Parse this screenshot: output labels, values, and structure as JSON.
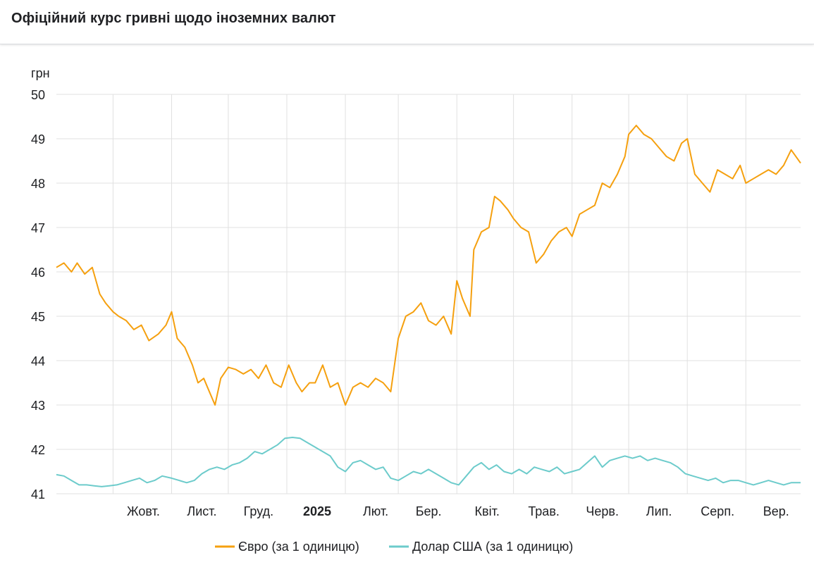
{
  "header": {
    "title": "Офіційний курс гривні щодо іноземних валют"
  },
  "chart_data": {
    "type": "line",
    "title": "Офіційний курс гривні щодо іноземних валют",
    "ylabel": "грн",
    "ylim": [
      41,
      50
    ],
    "yticks": [
      41,
      42,
      43,
      44,
      45,
      46,
      47,
      48,
      49,
      50
    ],
    "xlim": [
      "2024-09-01",
      "2025-09-30"
    ],
    "xticks": [
      {
        "date": "2024-10-01",
        "label": "Жовт.",
        "bold": false
      },
      {
        "date": "2024-11-01",
        "label": "Лист.",
        "bold": false
      },
      {
        "date": "2024-12-01",
        "label": "Груд.",
        "bold": false
      },
      {
        "date": "2025-01-01",
        "label": "2025",
        "bold": true
      },
      {
        "date": "2025-02-01",
        "label": "Лют.",
        "bold": false
      },
      {
        "date": "2025-03-01",
        "label": "Бер.",
        "bold": false
      },
      {
        "date": "2025-04-01",
        "label": "Квіт.",
        "bold": false
      },
      {
        "date": "2025-05-01",
        "label": "Трав.",
        "bold": false
      },
      {
        "date": "2025-06-01",
        "label": "Черв.",
        "bold": false
      },
      {
        "date": "2025-07-01",
        "label": "Лип.",
        "bold": false
      },
      {
        "date": "2025-08-01",
        "label": "Серп.",
        "bold": false
      },
      {
        "date": "2025-09-01",
        "label": "Вер.",
        "bold": false
      }
    ],
    "grid": true,
    "legend": "bottom",
    "series": [
      {
        "name": "Євро (за 1 одиницю)",
        "color": "#f5a00f",
        "x": [
          "2024-09-01",
          "2024-09-05",
          "2024-09-09",
          "2024-09-12",
          "2024-09-16",
          "2024-09-20",
          "2024-09-24",
          "2024-09-27",
          "2024-10-01",
          "2024-10-04",
          "2024-10-08",
          "2024-10-12",
          "2024-10-16",
          "2024-10-20",
          "2024-10-25",
          "2024-10-29",
          "2024-11-01",
          "2024-11-04",
          "2024-11-08",
          "2024-11-12",
          "2024-11-15",
          "2024-11-18",
          "2024-11-20",
          "2024-11-24",
          "2024-11-27",
          "2024-12-01",
          "2024-12-05",
          "2024-12-09",
          "2024-12-13",
          "2024-12-17",
          "2024-12-21",
          "2024-12-25",
          "2024-12-29",
          "2025-01-02",
          "2025-01-06",
          "2025-01-09",
          "2025-01-13",
          "2025-01-16",
          "2025-01-20",
          "2025-01-24",
          "2025-01-28",
          "2025-02-01",
          "2025-02-05",
          "2025-02-09",
          "2025-02-13",
          "2025-02-17",
          "2025-02-21",
          "2025-02-25",
          "2025-03-01",
          "2025-03-05",
          "2025-03-09",
          "2025-03-13",
          "2025-03-17",
          "2025-03-21",
          "2025-03-25",
          "2025-03-29",
          "2025-04-01",
          "2025-04-04",
          "2025-04-08",
          "2025-04-10",
          "2025-04-14",
          "2025-04-18",
          "2025-04-21",
          "2025-04-24",
          "2025-04-28",
          "2025-05-01",
          "2025-05-05",
          "2025-05-09",
          "2025-05-13",
          "2025-05-17",
          "2025-05-21",
          "2025-05-25",
          "2025-05-29",
          "2025-06-01",
          "2025-06-05",
          "2025-06-09",
          "2025-06-13",
          "2025-06-17",
          "2025-06-21",
          "2025-06-25",
          "2025-06-29",
          "2025-07-01",
          "2025-07-05",
          "2025-07-09",
          "2025-07-13",
          "2025-07-17",
          "2025-07-21",
          "2025-07-25",
          "2025-07-29",
          "2025-08-01",
          "2025-08-05",
          "2025-08-09",
          "2025-08-13",
          "2025-08-17",
          "2025-08-21",
          "2025-08-25",
          "2025-08-29",
          "2025-09-01",
          "2025-09-05",
          "2025-09-09",
          "2025-09-13",
          "2025-09-17",
          "2025-09-21",
          "2025-09-25",
          "2025-09-30"
        ],
        "values": [
          46.1,
          46.2,
          46.0,
          46.2,
          45.95,
          46.1,
          45.5,
          45.3,
          45.1,
          45.0,
          44.9,
          44.7,
          44.8,
          44.45,
          44.6,
          44.8,
          45.1,
          44.5,
          44.3,
          43.9,
          43.5,
          43.6,
          43.4,
          43.0,
          43.6,
          43.85,
          43.8,
          43.7,
          43.8,
          43.6,
          43.9,
          43.5,
          43.4,
          43.9,
          43.5,
          43.3,
          43.5,
          43.5,
          43.9,
          43.4,
          43.5,
          43.0,
          43.4,
          43.5,
          43.4,
          43.6,
          43.5,
          43.3,
          44.5,
          45.0,
          45.1,
          45.3,
          44.9,
          44.8,
          45.0,
          44.6,
          45.8,
          45.4,
          45.0,
          46.5,
          46.9,
          47.0,
          47.7,
          47.6,
          47.4,
          47.2,
          47.0,
          46.9,
          46.2,
          46.4,
          46.7,
          46.9,
          47.0,
          46.8,
          47.3,
          47.4,
          47.5,
          48.0,
          47.9,
          48.2,
          48.6,
          49.1,
          49.3,
          49.1,
          49.0,
          48.8,
          48.6,
          48.5,
          48.9,
          49.0,
          48.2,
          48.0,
          47.8,
          48.3,
          48.2,
          48.1,
          48.4,
          48.0,
          48.1,
          48.2,
          48.3,
          48.2,
          48.4,
          48.75,
          48.45
        ]
      },
      {
        "name": "Долар США (за 1 одиницю)",
        "color": "#6ccbcb",
        "x": [
          "2024-09-01",
          "2024-09-05",
          "2024-09-09",
          "2024-09-13",
          "2024-09-17",
          "2024-09-21",
          "2024-09-25",
          "2024-09-29",
          "2024-10-03",
          "2024-10-07",
          "2024-10-11",
          "2024-10-15",
          "2024-10-19",
          "2024-10-23",
          "2024-10-27",
          "2024-11-01",
          "2024-11-05",
          "2024-11-09",
          "2024-11-13",
          "2024-11-17",
          "2024-11-21",
          "2024-11-25",
          "2024-11-29",
          "2024-12-03",
          "2024-12-07",
          "2024-12-11",
          "2024-12-15",
          "2024-12-19",
          "2024-12-23",
          "2024-12-27",
          "2024-12-31",
          "2025-01-04",
          "2025-01-08",
          "2025-01-12",
          "2025-01-16",
          "2025-01-20",
          "2025-01-24",
          "2025-01-28",
          "2025-02-01",
          "2025-02-05",
          "2025-02-09",
          "2025-02-13",
          "2025-02-17",
          "2025-02-21",
          "2025-02-25",
          "2025-03-01",
          "2025-03-05",
          "2025-03-09",
          "2025-03-13",
          "2025-03-17",
          "2025-03-21",
          "2025-03-25",
          "2025-03-29",
          "2025-04-02",
          "2025-04-06",
          "2025-04-10",
          "2025-04-14",
          "2025-04-18",
          "2025-04-22",
          "2025-04-26",
          "2025-04-30",
          "2025-05-04",
          "2025-05-08",
          "2025-05-12",
          "2025-05-16",
          "2025-05-20",
          "2025-05-24",
          "2025-05-28",
          "2025-06-01",
          "2025-06-05",
          "2025-06-09",
          "2025-06-13",
          "2025-06-17",
          "2025-06-21",
          "2025-06-25",
          "2025-06-29",
          "2025-07-03",
          "2025-07-07",
          "2025-07-11",
          "2025-07-15",
          "2025-07-19",
          "2025-07-23",
          "2025-07-27",
          "2025-07-31",
          "2025-08-04",
          "2025-08-08",
          "2025-08-12",
          "2025-08-16",
          "2025-08-20",
          "2025-08-24",
          "2025-08-28",
          "2025-09-01",
          "2025-09-05",
          "2025-09-09",
          "2025-09-13",
          "2025-09-17",
          "2025-09-21",
          "2025-09-25",
          "2025-09-30"
        ],
        "values": [
          41.43,
          41.4,
          41.3,
          41.2,
          41.2,
          41.18,
          41.16,
          41.18,
          41.2,
          41.25,
          41.3,
          41.35,
          41.25,
          41.3,
          41.4,
          41.35,
          41.3,
          41.25,
          41.3,
          41.45,
          41.55,
          41.6,
          41.55,
          41.65,
          41.7,
          41.8,
          41.95,
          41.9,
          42.0,
          42.1,
          42.25,
          42.27,
          42.25,
          42.15,
          42.05,
          41.95,
          41.85,
          41.6,
          41.5,
          41.7,
          41.75,
          41.65,
          41.55,
          41.6,
          41.35,
          41.3,
          41.4,
          41.5,
          41.45,
          41.55,
          41.45,
          41.35,
          41.25,
          41.2,
          41.4,
          41.6,
          41.7,
          41.55,
          41.65,
          41.5,
          41.45,
          41.55,
          41.45,
          41.6,
          41.55,
          41.5,
          41.6,
          41.45,
          41.5,
          41.55,
          41.7,
          41.85,
          41.6,
          41.75,
          41.8,
          41.85,
          41.8,
          41.85,
          41.75,
          41.8,
          41.75,
          41.7,
          41.6,
          41.45,
          41.4,
          41.35,
          41.3,
          41.35,
          41.25,
          41.3,
          41.3,
          41.25,
          41.2,
          41.25,
          41.3,
          41.25,
          41.2,
          41.25,
          41.25
        ]
      }
    ]
  }
}
